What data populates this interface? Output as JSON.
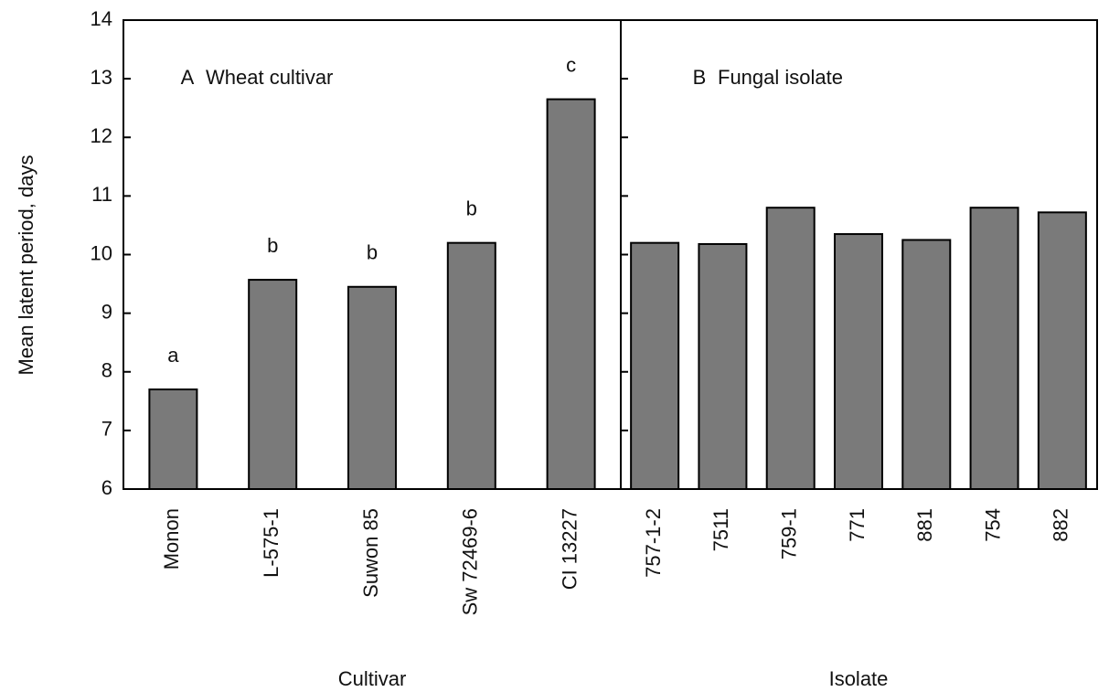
{
  "chart_data": [
    {
      "type": "bar",
      "panel": "A",
      "title": "Wheat cultivar",
      "ylabel": "Mean latent period, days",
      "xlabel": "Cultivar",
      "categories": [
        "Monon",
        "L-575-1",
        "Suwon 85",
        "Sw 72469-6",
        "CI 13227"
      ],
      "values": [
        7.7,
        9.57,
        9.45,
        10.2,
        12.65
      ],
      "letters": [
        "a",
        "b",
        "b",
        "b",
        "c"
      ],
      "color": "#7a7a7a",
      "ylim": [
        6,
        14
      ],
      "yticks": [
        6,
        7,
        8,
        9,
        10,
        11,
        12,
        13,
        14
      ],
      "ytick_labels": true
    },
    {
      "type": "bar",
      "panel": "B",
      "title": "Fungal isolate",
      "xlabel": "Isolate",
      "categories": [
        "757-1-2",
        "7511",
        "759-1",
        "771",
        "881",
        "754",
        "882"
      ],
      "values": [
        10.2,
        10.18,
        10.8,
        10.35,
        10.25,
        10.8,
        10.72
      ],
      "color": "#7a7a7a",
      "ylim": [
        6,
        14
      ],
      "yticks": [
        7,
        8,
        9,
        10,
        11,
        12,
        13
      ],
      "ytick_labels": false
    }
  ]
}
